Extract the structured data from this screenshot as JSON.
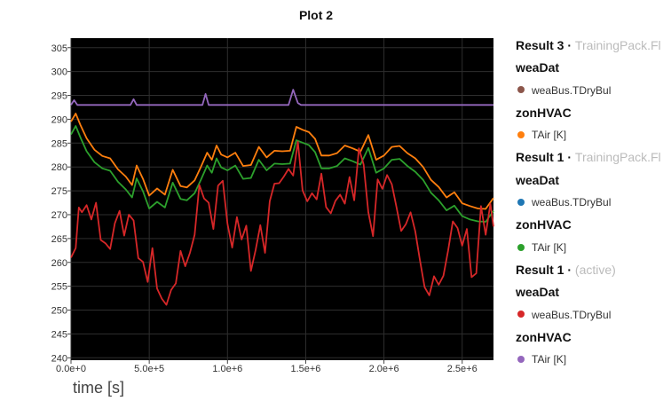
{
  "plot_title": "Plot 2",
  "legend": [
    {
      "result": "Result 3",
      "source": "TrainingPack.Fl",
      "groups": [
        {
          "name": "weaDat",
          "series": [
            {
              "label": "weaBus.TDryBul",
              "color": "#8c564b"
            }
          ]
        },
        {
          "name": "zonHVAC",
          "series": [
            {
              "label": "TAir [K]",
              "color": "#ff7f0e"
            }
          ]
        }
      ]
    },
    {
      "result": "Result 1",
      "source": "TrainingPack.Fl",
      "groups": [
        {
          "name": "weaDat",
          "series": [
            {
              "label": "weaBus.TDryBul",
              "color": "#1f77b4"
            }
          ]
        },
        {
          "name": "zonHVAC",
          "series": [
            {
              "label": "TAir [K]",
              "color": "#2ca02c"
            }
          ]
        }
      ]
    },
    {
      "result": "Result 1",
      "source": "(active)",
      "groups": [
        {
          "name": "weaDat",
          "series": [
            {
              "label": "weaBus.TDryBul",
              "color": "#d62728"
            }
          ]
        },
        {
          "name": "zonHVAC",
          "series": [
            {
              "label": "TAir [K]",
              "color": "#9467bd"
            }
          ]
        }
      ]
    }
  ],
  "chart_data": {
    "type": "line",
    "title": "Plot 2",
    "xlabel": "time [s]",
    "ylabel": "",
    "xlim": [
      0,
      2700000
    ],
    "ylim": [
      239.5,
      307
    ],
    "grid": true,
    "background": "#000000",
    "legend_position": "right",
    "x_ticks": [
      0,
      500000,
      1000000,
      1500000,
      2000000,
      2500000
    ],
    "x_tick_labels": [
      "0.0e+0",
      "5.0e+5",
      "1.0e+6",
      "1.5e+6",
      "2.0e+6",
      "2.5e+6"
    ],
    "y_ticks": [
      240,
      245,
      250,
      255,
      260,
      265,
      270,
      275,
      280,
      285,
      290,
      295,
      300,
      305
    ],
    "y_tick_labels": [
      "240",
      "245",
      "250",
      "255",
      "260",
      "265",
      "270",
      "275",
      "280",
      "285",
      "290",
      "295",
      "300",
      "305"
    ],
    "series": [
      {
        "color": "#9467bd",
        "x": [
          0,
          20000,
          40000,
          60000,
          380000,
          400000,
          420000,
          840000,
          860000,
          880000,
          1390000,
          1420000,
          1450000,
          1470000,
          2700000
        ],
        "y": [
          293,
          294,
          293,
          293,
          293,
          294.2,
          293,
          293,
          295.3,
          293,
          293,
          296.2,
          293.4,
          293,
          293
        ]
      },
      {
        "color": "#ff7f0e",
        "x": [
          0,
          30000,
          60000,
          100000,
          150000,
          200000,
          250000,
          300000,
          350000,
          390000,
          420000,
          460000,
          500000,
          550000,
          600000,
          650000,
          700000,
          740000,
          790000,
          830000,
          870000,
          900000,
          930000,
          960000,
          1000000,
          1050000,
          1100000,
          1150000,
          1200000,
          1250000,
          1300000,
          1350000,
          1400000,
          1440000,
          1480000,
          1520000,
          1560000,
          1600000,
          1650000,
          1700000,
          1750000,
          1800000,
          1850000,
          1900000,
          1950000,
          2000000,
          2050000,
          2100000,
          2150000,
          2200000,
          2250000,
          2300000,
          2350000,
          2400000,
          2450000,
          2500000,
          2550000,
          2600000,
          2650000,
          2700000
        ],
        "y": [
          289.5,
          291.2,
          288.8,
          286,
          283.6,
          282.3,
          281.8,
          279.5,
          278,
          276.2,
          280.3,
          277.5,
          274,
          275.5,
          274.2,
          279.4,
          276,
          275.7,
          277.2,
          280,
          283,
          281.5,
          284.5,
          282.6,
          282,
          283,
          280.2,
          280.4,
          284.2,
          282,
          283.4,
          283.3,
          283.4,
          288.4,
          287.8,
          287.3,
          285.9,
          282.4,
          282.4,
          282.9,
          284.5,
          283.9,
          283.2,
          286.7,
          281.5,
          282.4,
          284.2,
          284.4,
          282.9,
          281.8,
          280,
          277.3,
          275.8,
          273.6,
          274.7,
          272.4,
          271.8,
          271.3,
          271.2,
          273.5
        ]
      },
      {
        "color": "#2ca02c",
        "x": [
          0,
          30000,
          60000,
          100000,
          150000,
          200000,
          250000,
          300000,
          350000,
          390000,
          420000,
          460000,
          500000,
          550000,
          600000,
          650000,
          700000,
          740000,
          790000,
          830000,
          870000,
          900000,
          930000,
          960000,
          1000000,
          1050000,
          1100000,
          1150000,
          1200000,
          1250000,
          1300000,
          1350000,
          1400000,
          1440000,
          1480000,
          1520000,
          1560000,
          1600000,
          1650000,
          1700000,
          1750000,
          1800000,
          1850000,
          1900000,
          1950000,
          2000000,
          2050000,
          2100000,
          2150000,
          2200000,
          2250000,
          2300000,
          2350000,
          2400000,
          2450000,
          2500000,
          2550000,
          2600000,
          2650000,
          2700000
        ],
        "y": [
          286.8,
          288.6,
          286.2,
          283.3,
          281,
          279.7,
          279.2,
          276.9,
          275.3,
          273.6,
          277.6,
          274.9,
          271.3,
          272.7,
          271.5,
          276.7,
          273.3,
          273,
          274.5,
          277.3,
          280.3,
          278.8,
          281.8,
          279.9,
          279.3,
          280.3,
          277.5,
          277.7,
          281.5,
          279.3,
          280.7,
          280.6,
          280.7,
          285.6,
          285.1,
          284.6,
          283.1,
          279.7,
          279.7,
          280.2,
          281.8,
          281.2,
          280.5,
          284,
          278.8,
          279.7,
          281.5,
          281.7,
          280.2,
          279,
          277.3,
          274.6,
          273,
          270.9,
          271.9,
          269.7,
          269,
          268.6,
          268.5,
          270.8
        ]
      },
      {
        "color": "#d62728",
        "x": [
          0,
          30000,
          50000,
          70000,
          100000,
          130000,
          160000,
          190000,
          220000,
          250000,
          280000,
          310000,
          340000,
          370000,
          400000,
          430000,
          460000,
          490000,
          520000,
          550000,
          580000,
          610000,
          640000,
          670000,
          700000,
          730000,
          760000,
          790000,
          820000,
          850000,
          880000,
          910000,
          940000,
          970000,
          1000000,
          1030000,
          1060000,
          1090000,
          1120000,
          1150000,
          1180000,
          1210000,
          1240000,
          1270000,
          1300000,
          1330000,
          1360000,
          1390000,
          1420000,
          1450000,
          1480000,
          1510000,
          1540000,
          1570000,
          1600000,
          1630000,
          1660000,
          1690000,
          1720000,
          1750000,
          1780000,
          1810000,
          1840000,
          1870000,
          1900000,
          1930000,
          1960000,
          1990000,
          2020000,
          2050000,
          2080000,
          2110000,
          2140000,
          2170000,
          2200000,
          2230000,
          2260000,
          2290000,
          2320000,
          2350000,
          2380000,
          2410000,
          2440000,
          2470000,
          2500000,
          2530000,
          2560000,
          2590000,
          2620000,
          2650000,
          2680000,
          2700000
        ],
        "y": [
          261,
          263,
          271.5,
          270.5,
          272,
          269,
          272.5,
          264.7,
          264,
          262.8,
          268.2,
          270.8,
          265.6,
          270,
          268.8,
          260.9,
          260.1,
          255.9,
          263,
          254.5,
          252.4,
          251.1,
          254.2,
          255.6,
          262.4,
          259.2,
          262,
          265.8,
          276.2,
          273.4,
          272.5,
          267,
          276.1,
          277.1,
          268.1,
          263.1,
          269.5,
          264.8,
          267.7,
          258.2,
          262.6,
          267.8,
          262,
          272.8,
          276.5,
          276.6,
          278,
          279.6,
          278.2,
          285.3,
          275.1,
          272.8,
          274.5,
          273.2,
          278.6,
          271.6,
          270.3,
          272.9,
          274.2,
          272.3,
          277.9,
          273,
          283.9,
          280.5,
          270.5,
          265.5,
          277.4,
          275.4,
          278.3,
          276.4,
          271.6,
          266.6,
          268,
          270.5,
          266.5,
          260.5,
          254.8,
          253.1,
          257.1,
          255.3,
          257.2,
          262.5,
          268.6,
          267.2,
          263.5,
          267,
          256.9,
          257.7,
          271.8,
          265.8,
          272.3,
          267.5
        ]
      }
    ]
  }
}
